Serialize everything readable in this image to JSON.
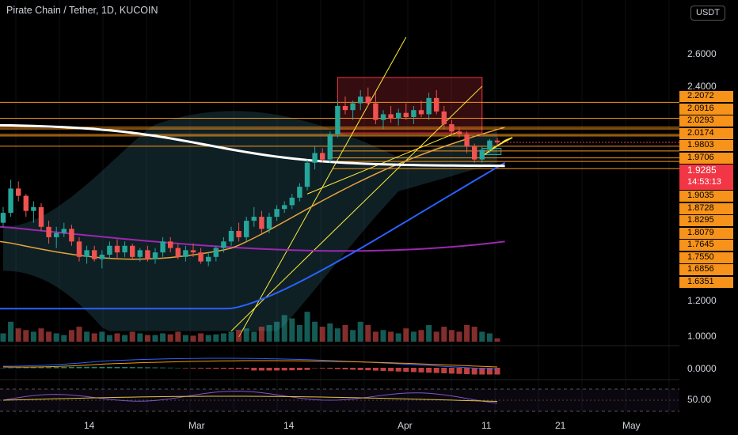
{
  "header": {
    "title": "Pirate Chain / Tether, 1D, KUCOIN",
    "currency_button": "USDT"
  },
  "axis": {
    "price_labels": [
      {
        "text": "2.6000",
        "y": 2.6
      },
      {
        "text": "2.4000",
        "y": 2.4
      },
      {
        "text": "1.2000",
        "y": 1.2
      },
      {
        "text": "1.0000",
        "y": 1.0
      },
      {
        "text": "0.0000",
        "y": 0.0
      },
      {
        "text": "50.00",
        "y": 50
      }
    ],
    "time_labels": [
      "14",
      "Mar",
      "14",
      "Apr",
      "11",
      "21",
      "May"
    ]
  },
  "last_price": {
    "value": "1.9285",
    "countdown": "14:53:13"
  },
  "colors": {
    "up": "#26a69a",
    "down": "#ef5350",
    "level": "#f7931a",
    "ma_white": "#ffffff",
    "ma_orange": "#e8a33d",
    "ma_blue": "#2962ff",
    "ma_purple": "#9c27b0",
    "trend": "#ffeb3b",
    "band": "#2a5c6a"
  },
  "chart_data": {
    "type": "candlestick",
    "title": "Pirate Chain / Tether, 1D, KUCOIN",
    "price_scale": "log",
    "levels": [
      {
        "label": "2.2072",
        "y": 2.2072
      },
      {
        "label": "2.0916",
        "y": 2.0916
      },
      {
        "label": "2.0293",
        "y": 2.0293
      },
      {
        "label": "2.0174",
        "y": 2.0174
      },
      {
        "label": "1.9803",
        "y": 1.9803
      },
      {
        "label": "1.9706",
        "y": 1.9706
      },
      {
        "label": "1.9035",
        "y": 1.9035
      },
      {
        "label": "1.8728",
        "y": 1.8728
      },
      {
        "label": "1.8295",
        "y": 1.8295
      },
      {
        "label": "1.8079",
        "y": 1.8079
      },
      {
        "label": "1.7645",
        "y": 1.7645
      },
      {
        "label": "1.7550",
        "y": 1.755
      },
      {
        "label": "1.6856",
        "y": 1.6856
      },
      {
        "label": "1.6351",
        "y": 1.6351
      }
    ],
    "candles": [
      [
        1.47,
        1.55,
        1.45,
        1.52
      ],
      [
        1.52,
        1.7,
        1.5,
        1.65
      ],
      [
        1.65,
        1.69,
        1.58,
        1.61
      ],
      [
        1.61,
        1.62,
        1.5,
        1.53
      ],
      [
        1.53,
        1.58,
        1.47,
        1.55
      ],
      [
        1.55,
        1.57,
        1.43,
        1.45
      ],
      [
        1.45,
        1.48,
        1.37,
        1.4
      ],
      [
        1.4,
        1.45,
        1.35,
        1.42
      ],
      [
        1.42,
        1.47,
        1.4,
        1.44
      ],
      [
        1.44,
        1.46,
        1.36,
        1.38
      ],
      [
        1.38,
        1.4,
        1.29,
        1.31
      ],
      [
        1.31,
        1.36,
        1.28,
        1.34
      ],
      [
        1.34,
        1.36,
        1.29,
        1.3
      ],
      [
        1.3,
        1.34,
        1.26,
        1.32
      ],
      [
        1.32,
        1.38,
        1.3,
        1.36
      ],
      [
        1.36,
        1.39,
        1.3,
        1.33
      ],
      [
        1.33,
        1.38,
        1.31,
        1.36
      ],
      [
        1.36,
        1.37,
        1.3,
        1.31
      ],
      [
        1.31,
        1.35,
        1.29,
        1.34
      ],
      [
        1.34,
        1.36,
        1.29,
        1.3
      ],
      [
        1.3,
        1.35,
        1.28,
        1.33
      ],
      [
        1.33,
        1.4,
        1.31,
        1.38
      ],
      [
        1.38,
        1.4,
        1.33,
        1.35
      ],
      [
        1.35,
        1.37,
        1.3,
        1.31
      ],
      [
        1.31,
        1.36,
        1.29,
        1.34
      ],
      [
        1.34,
        1.37,
        1.31,
        1.33
      ],
      [
        1.33,
        1.35,
        1.28,
        1.29
      ],
      [
        1.29,
        1.33,
        1.27,
        1.31
      ],
      [
        1.31,
        1.36,
        1.29,
        1.35
      ],
      [
        1.35,
        1.4,
        1.33,
        1.38
      ],
      [
        1.38,
        1.45,
        1.36,
        1.43
      ],
      [
        1.43,
        1.47,
        1.38,
        1.4
      ],
      [
        1.4,
        1.5,
        1.38,
        1.48
      ],
      [
        1.48,
        1.55,
        1.45,
        1.5
      ],
      [
        1.5,
        1.53,
        1.42,
        1.44
      ],
      [
        1.44,
        1.52,
        1.42,
        1.5
      ],
      [
        1.5,
        1.56,
        1.48,
        1.54
      ],
      [
        1.54,
        1.58,
        1.52,
        1.56
      ],
      [
        1.56,
        1.62,
        1.54,
        1.6
      ],
      [
        1.6,
        1.68,
        1.58,
        1.66
      ],
      [
        1.66,
        1.82,
        1.64,
        1.8
      ],
      [
        1.8,
        1.9,
        1.76,
        1.86
      ],
      [
        1.86,
        1.89,
        1.8,
        1.82
      ],
      [
        1.82,
        2.0,
        1.8,
        1.98
      ],
      [
        1.98,
        2.22,
        1.96,
        2.18
      ],
      [
        2.18,
        2.25,
        2.12,
        2.15
      ],
      [
        2.15,
        2.22,
        2.08,
        2.2
      ],
      [
        2.2,
        2.3,
        2.15,
        2.25
      ],
      [
        2.25,
        2.32,
        2.18,
        2.2
      ],
      [
        2.2,
        2.28,
        2.05,
        2.08
      ],
      [
        2.08,
        2.15,
        2.02,
        2.12
      ],
      [
        2.12,
        2.18,
        2.06,
        2.09
      ],
      [
        2.09,
        2.16,
        2.04,
        2.13
      ],
      [
        2.13,
        2.2,
        2.08,
        2.1
      ],
      [
        2.1,
        2.18,
        2.05,
        2.15
      ],
      [
        2.15,
        2.22,
        2.1,
        2.12
      ],
      [
        2.12,
        2.28,
        2.08,
        2.24
      ],
      [
        2.24,
        2.3,
        2.12,
        2.14
      ],
      [
        2.14,
        2.18,
        2.02,
        2.05
      ],
      [
        2.05,
        2.08,
        1.98,
        2.0
      ],
      [
        2.0,
        2.03,
        1.96,
        1.98
      ],
      [
        1.98,
        2.0,
        1.86,
        1.9
      ],
      [
        1.9,
        1.92,
        1.8,
        1.82
      ],
      [
        1.82,
        1.9,
        1.8,
        1.88
      ],
      [
        1.88,
        1.95,
        1.86,
        1.94
      ],
      [
        1.94,
        1.96,
        1.91,
        1.9285
      ]
    ],
    "volume": [
      0.25,
      0.6,
      0.4,
      0.35,
      0.3,
      0.4,
      0.3,
      0.25,
      0.2,
      0.35,
      0.45,
      0.3,
      0.25,
      0.3,
      0.2,
      0.25,
      0.2,
      0.3,
      0.25,
      0.2,
      0.2,
      0.25,
      0.22,
      0.3,
      0.2,
      0.18,
      0.25,
      0.2,
      0.22,
      0.25,
      0.3,
      0.35,
      0.4,
      0.3,
      0.45,
      0.5,
      0.6,
      0.8,
      0.7,
      0.5,
      0.9,
      0.6,
      0.45,
      0.55,
      0.4,
      0.5,
      0.35,
      0.6,
      0.5,
      0.3,
      0.35,
      0.3,
      0.25,
      0.4,
      0.3,
      0.35,
      0.5,
      0.3,
      0.45,
      0.35,
      0.3,
      0.5,
      0.45,
      0.3,
      0.25,
      0.1
    ],
    "rsi_level": 50
  }
}
